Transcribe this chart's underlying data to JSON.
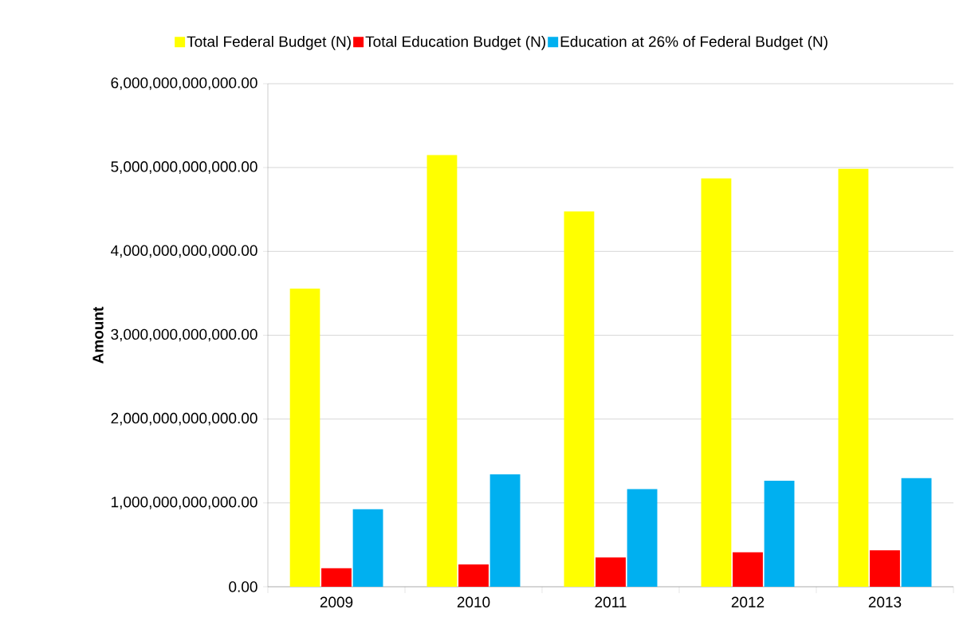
{
  "chart_data": {
    "type": "bar",
    "ylabel": "Amount",
    "categories": [
      "2009",
      "2010",
      "2011",
      "2012",
      "2013"
    ],
    "series": [
      {
        "name": "Total Federal Budget  (N)",
        "color": "#ffff00",
        "values": [
          3555000000000,
          5150000000000,
          4475000000000,
          4870000000000,
          4985000000000
        ]
      },
      {
        "name": "Total Education Budget  (N)",
        "color": "#ff0000",
        "values": [
          220000000000,
          265000000000,
          350000000000,
          410000000000,
          435000000000
        ]
      },
      {
        "name": "Education at 26% of Federal Budget (N)",
        "color": "#00b0f0",
        "values": [
          925000000000,
          1340000000000,
          1165000000000,
          1265000000000,
          1295000000000
        ]
      }
    ],
    "ylim": [
      0,
      6000000000000
    ],
    "yticks": [
      {
        "value": 0,
        "label": "0.00"
      },
      {
        "value": 1000000000000,
        "label": "1,000,000,000,000.00"
      },
      {
        "value": 2000000000000,
        "label": "2,000,000,000,000.00"
      },
      {
        "value": 3000000000000,
        "label": "3,000,000,000,000.00"
      },
      {
        "value": 4000000000000,
        "label": "4,000,000,000,000.00"
      },
      {
        "value": 5000000000000,
        "label": "5,000,000,000,000.00"
      },
      {
        "value": 6000000000000,
        "label": "6,000,000,000,000.00"
      }
    ],
    "grid": "y",
    "legend": "top"
  }
}
